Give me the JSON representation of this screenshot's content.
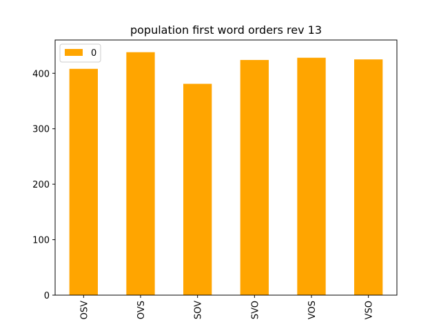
{
  "chart_data": {
    "type": "bar",
    "title": "population first word orders rev 13",
    "categories": [
      "OSV",
      "OVS",
      "SOV",
      "SVO",
      "VOS",
      "VSO"
    ],
    "series": [
      {
        "name": "0",
        "values": [
          408,
          438,
          381,
          424,
          428,
          425
        ],
        "color": "#ffa500"
      }
    ],
    "ylim": [
      0,
      460
    ],
    "yticks": [
      0,
      100,
      200,
      300,
      400
    ],
    "xlabel": "",
    "ylabel": "",
    "legend": "top-left",
    "grid": false
  }
}
